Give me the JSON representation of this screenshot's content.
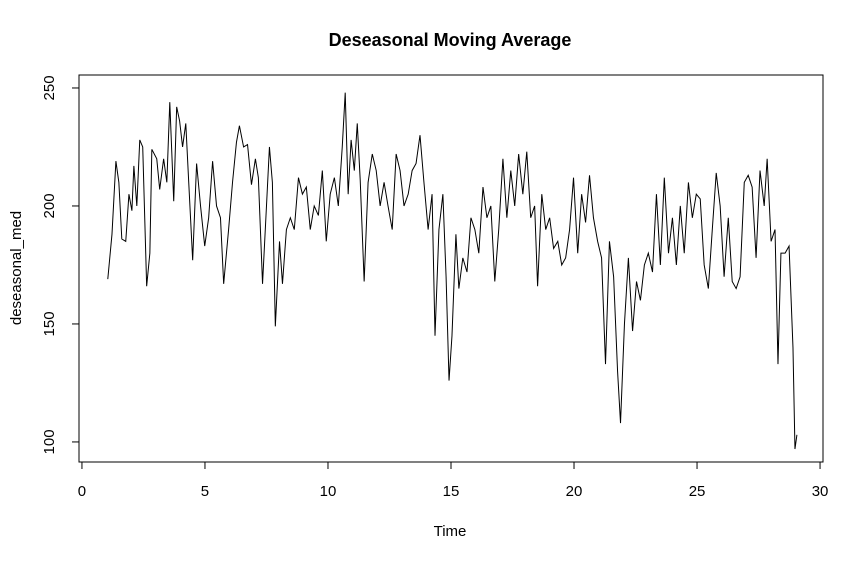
{
  "chart_data": {
    "type": "line",
    "title": "Deseasonal Moving Average",
    "x_label": "Time",
    "y_label": "deseasonal_med",
    "xlim": [
      -0.12,
      30.12
    ],
    "ylim": [
      91.5,
      255.5
    ],
    "xticks": [
      0,
      5,
      10,
      15,
      20,
      25,
      30
    ],
    "yticks": [
      100,
      150,
      200,
      250
    ],
    "x": [
      1.05,
      1.22,
      1.38,
      1.5,
      1.62,
      1.78,
      1.91,
      2.03,
      2.11,
      2.23,
      2.35,
      2.47,
      2.63,
      2.76,
      2.84,
      3.04,
      3.16,
      3.32,
      3.45,
      3.57,
      3.73,
      3.85,
      3.97,
      4.09,
      4.22,
      4.34,
      4.5,
      4.66,
      4.82,
      4.99,
      5.15,
      5.31,
      5.47,
      5.63,
      5.76,
      5.96,
      6.12,
      6.28,
      6.4,
      6.57,
      6.73,
      6.89,
      7.05,
      7.17,
      7.34,
      7.5,
      7.62,
      7.74,
      7.86,
      8.03,
      8.15,
      8.31,
      8.47,
      8.63,
      8.8,
      8.96,
      9.12,
      9.28,
      9.44,
      9.61,
      9.77,
      9.93,
      10.09,
      10.26,
      10.42,
      10.58,
      10.7,
      10.82,
      10.94,
      11.07,
      11.19,
      11.31,
      11.47,
      11.63,
      11.8,
      11.96,
      12.12,
      12.28,
      12.44,
      12.61,
      12.77,
      12.93,
      13.09,
      13.26,
      13.42,
      13.58,
      13.74,
      13.9,
      14.07,
      14.23,
      14.35,
      14.51,
      14.67,
      14.8,
      14.92,
      15.04,
      15.2,
      15.32,
      15.48,
      15.65,
      15.81,
      15.97,
      16.13,
      16.3,
      16.46,
      16.62,
      16.78,
      16.94,
      17.11,
      17.27,
      17.43,
      17.59,
      17.75,
      17.92,
      18.08,
      18.24,
      18.4,
      18.52,
      18.69,
      18.85,
      19.01,
      19.17,
      19.34,
      19.5,
      19.66,
      19.82,
      19.98,
      20.15,
      20.31,
      20.47,
      20.63,
      20.79,
      20.96,
      21.12,
      21.28,
      21.44,
      21.61,
      21.77,
      21.89,
      22.05,
      22.21,
      22.38,
      22.54,
      22.7,
      22.86,
      23.02,
      23.19,
      23.35,
      23.51,
      23.67,
      23.84,
      24.0,
      24.16,
      24.32,
      24.48,
      24.65,
      24.81,
      24.97,
      25.13,
      25.29,
      25.46,
      25.62,
      25.78,
      25.94,
      26.1,
      26.27,
      26.43,
      26.59,
      26.75,
      26.92,
      27.08,
      27.24,
      27.4,
      27.56,
      27.73,
      27.85,
      28.01,
      28.17,
      28.29,
      28.41,
      28.58,
      28.74,
      28.9,
      28.98,
      29.06
    ],
    "series": [
      {
        "name": "deseasonal_med",
        "color": "#000000",
        "values": [
          169,
          188,
          219,
          210,
          186,
          185,
          205,
          198,
          217,
          200,
          228,
          225,
          166,
          180,
          224,
          220,
          207,
          220,
          210,
          244,
          202,
          242,
          236,
          225,
          235,
          210,
          177,
          218,
          200,
          183,
          195,
          219,
          200,
          195,
          167,
          190,
          210,
          227,
          234,
          225,
          226,
          209,
          220,
          212,
          167,
          200,
          225,
          210,
          149,
          185,
          167,
          190,
          195,
          190,
          212,
          205,
          208,
          190,
          200,
          196,
          215,
          185,
          205,
          212,
          200,
          225,
          248,
          205,
          228,
          215,
          235,
          211,
          168,
          210,
          222,
          215,
          200,
          210,
          200,
          190,
          222,
          215,
          200,
          205,
          215,
          218,
          230,
          210,
          190,
          205,
          145,
          190,
          205,
          170,
          126,
          145,
          188,
          165,
          178,
          172,
          195,
          190,
          180,
          208,
          195,
          200,
          168,
          190,
          220,
          195,
          215,
          200,
          222,
          205,
          223,
          195,
          200,
          166,
          205,
          190,
          195,
          182,
          185,
          175,
          178,
          190,
          212,
          180,
          205,
          193,
          213,
          195,
          185,
          178,
          133,
          185,
          170,
          130,
          108,
          150,
          178,
          147,
          168,
          160,
          175,
          180,
          172,
          205,
          175,
          212,
          180,
          195,
          175,
          200,
          180,
          210,
          195,
          205,
          203,
          175,
          165,
          190,
          214,
          200,
          170,
          195,
          168,
          165,
          170,
          210,
          213,
          208,
          178,
          215,
          200,
          220,
          185,
          190,
          133,
          180,
          180,
          183,
          140,
          97,
          103
        ]
      }
    ]
  }
}
